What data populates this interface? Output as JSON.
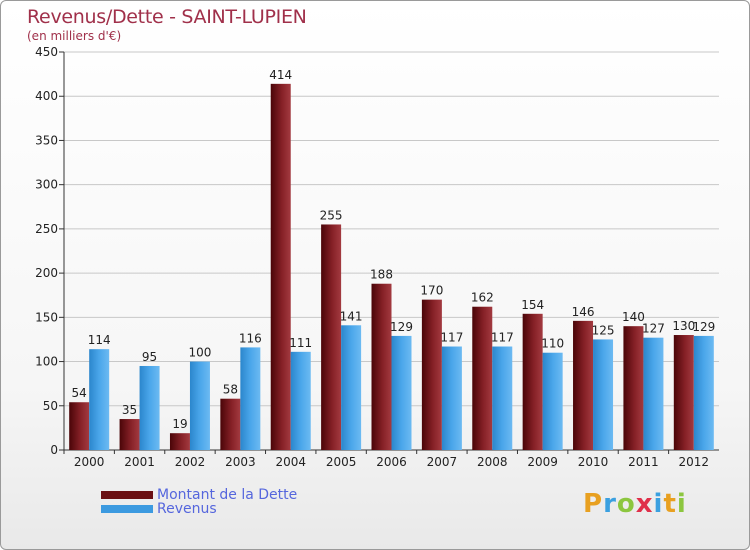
{
  "header": {
    "title": "Revenus/Dette - SAINT-LUPIEN",
    "subtitle": "(en milliers d'€)"
  },
  "chart_data": {
    "type": "bar",
    "title": "Revenus/Dette - SAINT-LUPIEN",
    "ylabel": "(en milliers d'€)",
    "xlabel": "",
    "categories": [
      "2000",
      "2001",
      "2002",
      "2003",
      "2004",
      "2005",
      "2006",
      "2007",
      "2008",
      "2009",
      "2010",
      "2011",
      "2012"
    ],
    "ylim": [
      0,
      450
    ],
    "yticks": [
      0,
      50,
      100,
      150,
      200,
      250,
      300,
      350,
      400,
      450
    ],
    "grid": true,
    "series": [
      {
        "name": "Montant de la Dette",
        "color": "#7a1a1f",
        "values": [
          54,
          35,
          19,
          58,
          414,
          255,
          188,
          170,
          162,
          154,
          146,
          140,
          130
        ]
      },
      {
        "name": "Revenus",
        "color": "#3c9ae0",
        "values": [
          114,
          95,
          100,
          116,
          111,
          141,
          129,
          117,
          117,
          110,
          125,
          127,
          129
        ]
      }
    ]
  },
  "legend": {
    "items": [
      {
        "label": "Montant de la Dette",
        "color": "#6a0f12"
      },
      {
        "label": "Revenus",
        "color": "#3c9ae0"
      }
    ]
  },
  "logo": {
    "letters": [
      "P",
      "r",
      "o",
      "x",
      "i",
      "t",
      "i"
    ],
    "colors": [
      "#e8a020",
      "#3aa0e0",
      "#8cc63f",
      "#e0304a",
      "#3aa0e0",
      "#e8a020",
      "#8cc63f"
    ]
  }
}
